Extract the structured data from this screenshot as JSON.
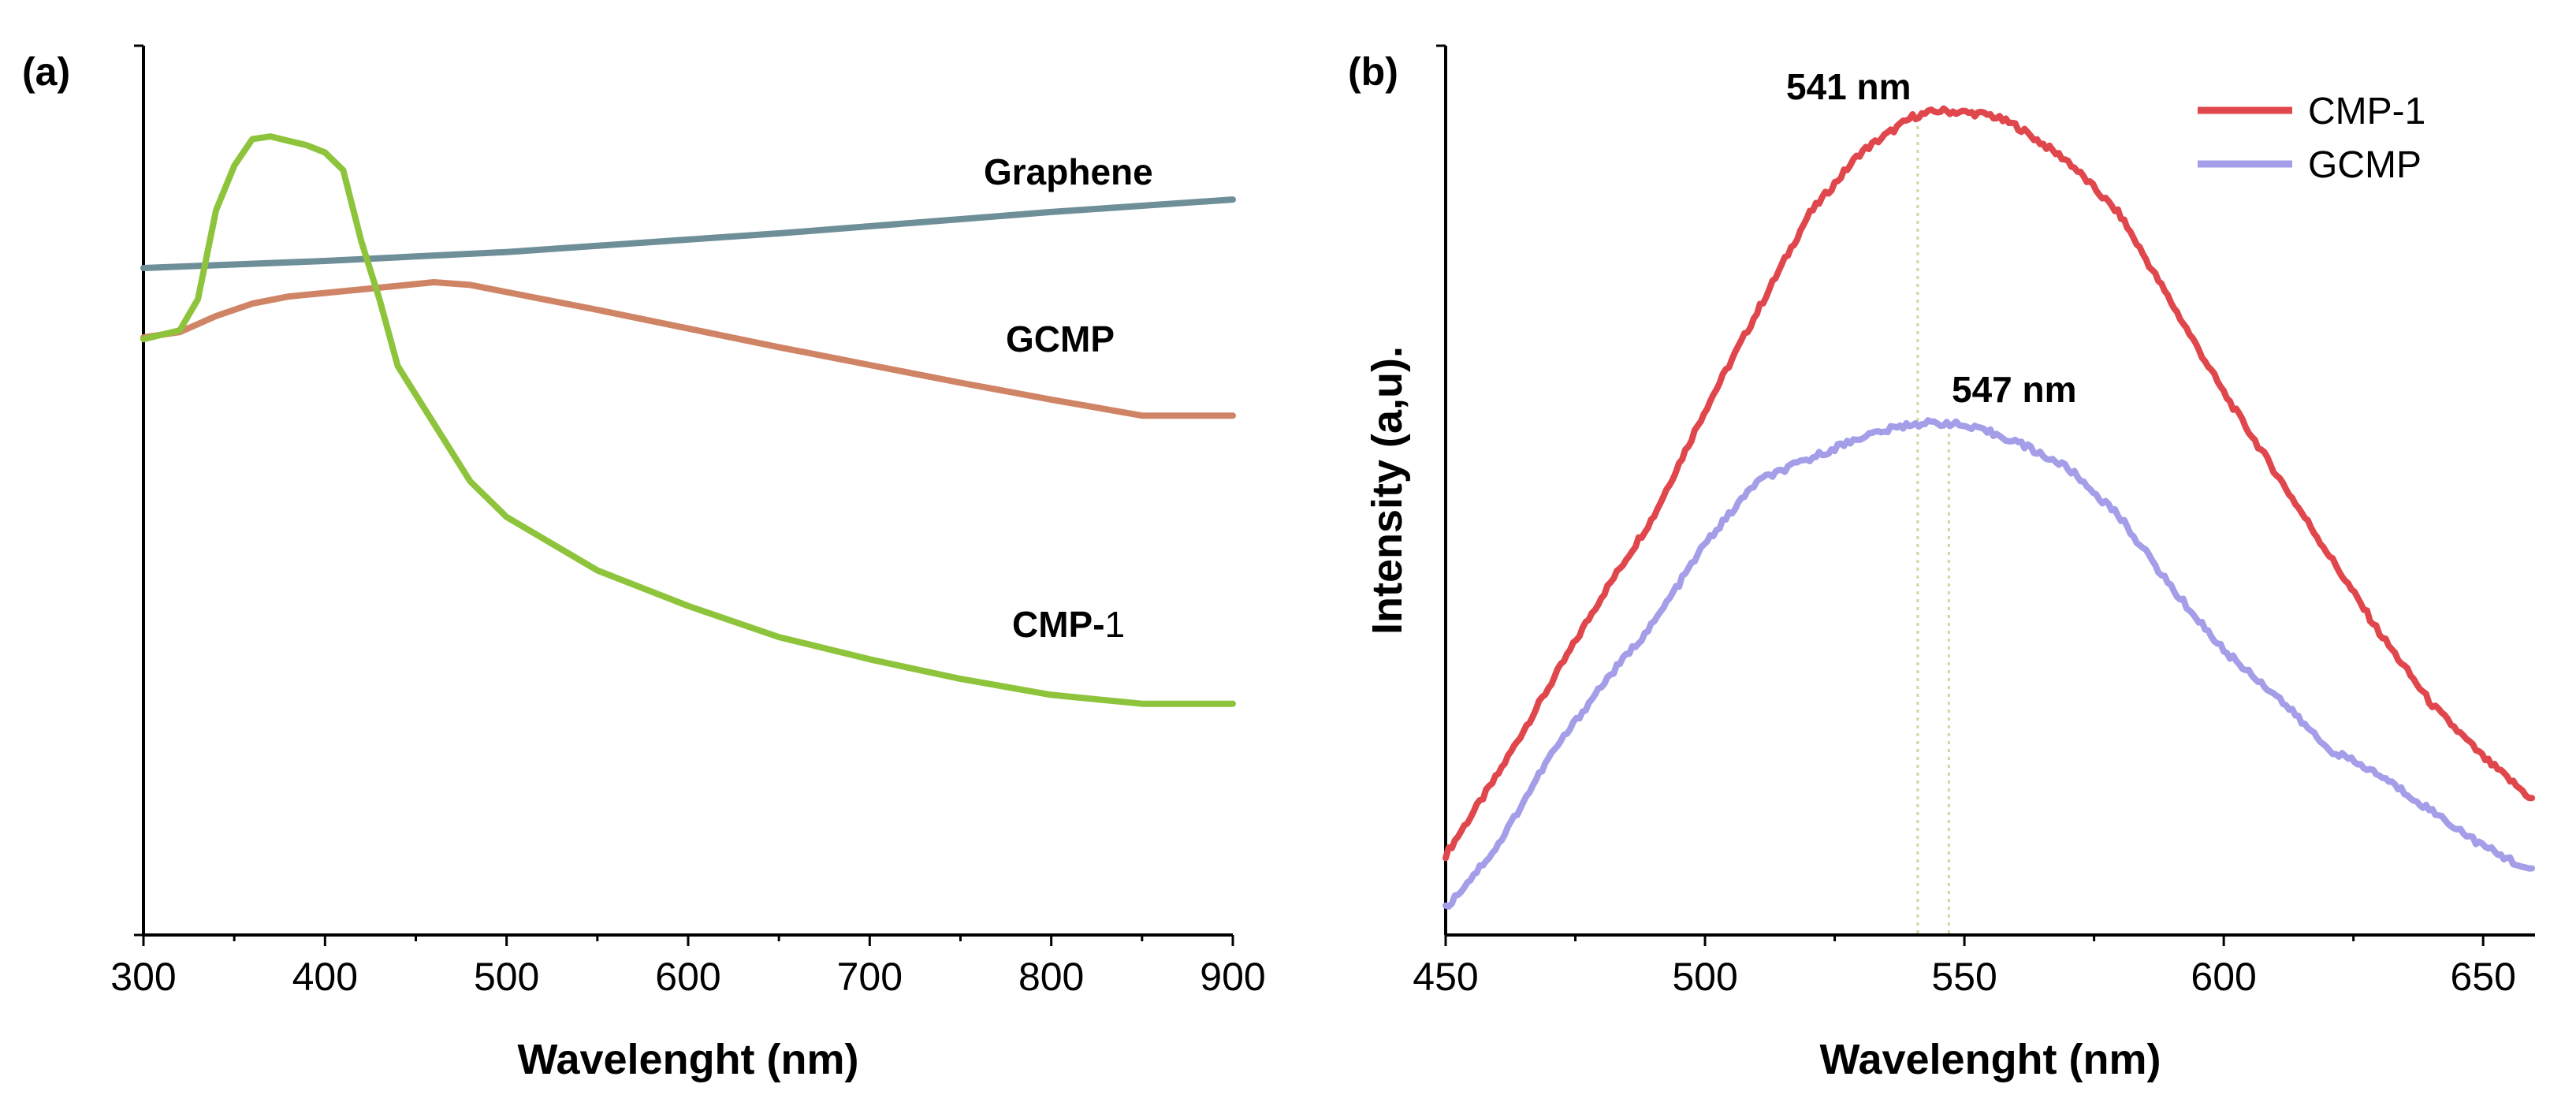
{
  "chart_data": [
    {
      "panel_label": "(a)",
      "type": "line",
      "xlabel": "Wavelenght (nm)",
      "ylabel": "",
      "xlim": [
        300,
        900
      ],
      "ylim": [
        0,
        100
      ],
      "xticks": [
        "300",
        "400",
        "500",
        "600",
        "700",
        "800",
        "900"
      ],
      "series": [
        {
          "name": "Graphene",
          "label": "Graphene",
          "color": "#6e8e98",
          "x": [
            300,
            350,
            400,
            450,
            500,
            550,
            600,
            650,
            700,
            750,
            800,
            850,
            900
          ],
          "y": [
            75,
            75.4,
            75.8,
            76.3,
            76.8,
            77.5,
            78.2,
            78.9,
            79.7,
            80.5,
            81.3,
            82,
            82.7
          ]
        },
        {
          "name": "GCMP",
          "label": "GCMP",
          "color": "#d08466",
          "x": [
            300,
            320,
            340,
            360,
            380,
            400,
            420,
            440,
            460,
            480,
            500,
            550,
            600,
            650,
            700,
            750,
            800,
            850,
            900
          ],
          "y": [
            67.2,
            67.8,
            69.6,
            71,
            71.8,
            72.2,
            72.6,
            73,
            73.4,
            73.1,
            72.3,
            70.3,
            68.2,
            66.1,
            64.1,
            62.1,
            60.2,
            58.4,
            58.4
          ]
        },
        {
          "name": "CMP-1",
          "label": "CMP-",
          "label_suffix": "1",
          "color": "#8ec43c",
          "x": [
            300,
            310,
            320,
            330,
            340,
            350,
            360,
            370,
            380,
            390,
            400,
            410,
            420,
            430,
            440,
            460,
            480,
            500,
            550,
            600,
            650,
            700,
            750,
            800,
            850,
            900
          ],
          "y": [
            67,
            67.5,
            68,
            71.5,
            81.5,
            86.5,
            89.5,
            89.8,
            89.3,
            88.8,
            88,
            86,
            78,
            71.5,
            64,
            57.5,
            51,
            47,
            41,
            37,
            33.5,
            31,
            28.8,
            27,
            26,
            26
          ]
        }
      ]
    },
    {
      "panel_label": "(b)",
      "type": "line",
      "xlabel": "Wavelenght (nm)",
      "ylabel": "Intensity (a,u).",
      "xlim": [
        450,
        660
      ],
      "ylim": [
        0,
        100
      ],
      "xticks": [
        "450",
        "500",
        "550",
        "600",
        "650"
      ],
      "legend_position": "top-right",
      "series": [
        {
          "name": "CMP-1",
          "color": "#e0474d",
          "x": [
            450,
            460,
            470,
            480,
            490,
            500,
            510,
            520,
            530,
            540,
            545,
            550,
            555,
            560,
            570,
            580,
            590,
            600,
            610,
            620,
            630,
            640,
            650,
            660
          ],
          "y": [
            9,
            18,
            28,
            38,
            47,
            59,
            70,
            81,
            88,
            92,
            92.7,
            92.5,
            92.2,
            91,
            87,
            81,
            71,
            61,
            52,
            43,
            34,
            26,
            20,
            15
          ]
        },
        {
          "name": "GCMP",
          "color": "#a49de8",
          "x": [
            450,
            460,
            470,
            480,
            490,
            500,
            510,
            520,
            530,
            540,
            547,
            555,
            560,
            570,
            580,
            590,
            600,
            610,
            620,
            630,
            640,
            650,
            660
          ],
          "y": [
            3,
            10,
            20,
            28,
            35,
            44,
            51,
            53.5,
            56,
            57.5,
            57.6,
            56.5,
            55.5,
            52.5,
            47,
            39,
            32,
            27,
            21,
            18,
            14,
            10,
            7
          ]
        }
      ],
      "annotations": [
        {
          "text": "541 nm",
          "x": 541
        },
        {
          "text": "547 nm",
          "x": 547
        }
      ]
    }
  ]
}
